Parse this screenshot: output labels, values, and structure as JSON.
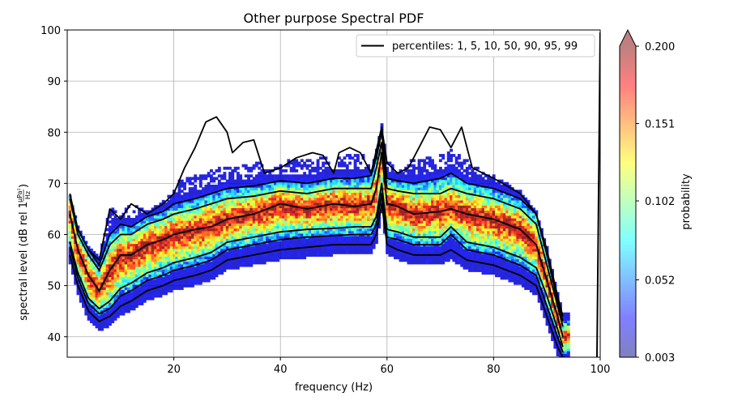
{
  "chart_data": {
    "type": "heatmap",
    "title": "Other purpose Spectral PDF",
    "xlabel": "frequency (Hz)",
    "ylabel": {
      "main": "spectral level (dB rel 1",
      "frac_num": "µPa²",
      "frac_den": "Hz",
      "close": ")"
    },
    "xlim": [
      0,
      100
    ],
    "ylim": [
      36,
      100
    ],
    "xticks": [
      20,
      40,
      60,
      80,
      100
    ],
    "yticks": [
      40,
      50,
      60,
      70,
      80,
      90,
      100
    ],
    "grid": true,
    "legend": {
      "label": "percentiles: 1, 5, 10, 50, 90, 95, 99",
      "placement": "top-right"
    },
    "colorbar": {
      "label": "probability",
      "ticks": [
        "0.200",
        "0.151",
        "0.102",
        "0.052",
        "0.003"
      ],
      "tick_values": [
        0.2,
        0.151,
        0.102,
        0.052,
        0.003
      ],
      "range": [
        0.003,
        0.2
      ],
      "extend": "max",
      "colormap": "jet"
    },
    "percentile_series": [
      {
        "name": "p1",
        "x": [
          0.5,
          2,
          4,
          6,
          8,
          10,
          12,
          15,
          18,
          20,
          24,
          27,
          30,
          35,
          40,
          45,
          50,
          54,
          57,
          58,
          59,
          60,
          62,
          65,
          70,
          72,
          75,
          80,
          85,
          88,
          90,
          92,
          93
        ],
        "y": [
          56,
          50,
          45,
          43,
          44,
          46,
          47,
          49,
          50,
          51,
          52,
          53,
          55,
          56,
          57,
          57.5,
          58,
          58,
          58,
          60,
          66,
          58,
          57,
          56,
          56,
          57,
          55,
          54,
          52,
          50,
          44,
          38,
          36
        ]
      },
      {
        "name": "p5",
        "x": [
          0.5,
          2,
          4,
          6,
          8,
          10,
          12,
          15,
          18,
          20,
          24,
          27,
          30,
          35,
          40,
          45,
          50,
          54,
          57,
          58,
          59,
          60,
          62,
          65,
          70,
          72,
          75,
          80,
          85,
          88,
          90,
          92,
          93
        ],
        "y": [
          57.5,
          51.5,
          46.5,
          44.5,
          45.5,
          48,
          49,
          51,
          52,
          53,
          54,
          55,
          57,
          58,
          59,
          59.5,
          59.8,
          60,
          60,
          62,
          68,
          59.5,
          59,
          58,
          58,
          60,
          57,
          56,
          54,
          52,
          46,
          40,
          37
        ]
      },
      {
        "name": "p10",
        "x": [
          0.5,
          2,
          4,
          6,
          8,
          10,
          12,
          15,
          18,
          20,
          24,
          27,
          30,
          35,
          40,
          45,
          50,
          54,
          57,
          58,
          59,
          60,
          62,
          65,
          70,
          72,
          75,
          80,
          85,
          88,
          90,
          92,
          93
        ],
        "y": [
          58.5,
          52.5,
          47.5,
          45.5,
          47,
          49.5,
          50.5,
          52.5,
          53.5,
          54.5,
          55.5,
          56.5,
          58.5,
          59.5,
          60.5,
          61,
          61.2,
          61.5,
          61.5,
          63.5,
          70,
          61,
          60.5,
          59.5,
          59.5,
          61.5,
          58.5,
          57.5,
          55.5,
          53.5,
          48,
          41.5,
          38
        ]
      },
      {
        "name": "p50",
        "x": [
          0.5,
          2,
          4,
          6,
          8,
          10,
          12,
          15,
          18,
          20,
          24,
          27,
          30,
          35,
          40,
          45,
          50,
          54,
          57,
          58,
          59,
          60,
          62,
          65,
          70,
          72,
          75,
          80,
          85,
          88,
          90,
          92,
          93
        ],
        "y": [
          64,
          57,
          52,
          49,
          53,
          56,
          56,
          58,
          59,
          60,
          61,
          61.5,
          63,
          64,
          66,
          65,
          66,
          65.5,
          66,
          69,
          76,
          66,
          65.5,
          64,
          64.5,
          65,
          64,
          63,
          61,
          58,
          51,
          44,
          40
        ]
      },
      {
        "name": "p90",
        "x": [
          0.5,
          2,
          4,
          6,
          8,
          10,
          12,
          15,
          18,
          20,
          24,
          27,
          30,
          35,
          40,
          45,
          50,
          54,
          57,
          58,
          59,
          60,
          62,
          65,
          70,
          72,
          75,
          80,
          85,
          88,
          90,
          92,
          93
        ],
        "y": [
          67,
          60,
          56,
          53,
          58,
          60,
          60,
          62,
          63,
          64,
          65,
          66,
          67,
          67.5,
          68.5,
          68,
          69,
          69,
          69,
          73,
          78,
          69,
          68.5,
          68,
          68,
          69,
          68,
          67,
          65,
          62,
          54,
          46,
          42
        ]
      },
      {
        "name": "p95",
        "x": [
          0.5,
          2,
          4,
          6,
          8,
          10,
          12,
          15,
          18,
          20,
          24,
          27,
          30,
          35,
          40,
          45,
          50,
          54,
          57,
          58,
          59,
          60,
          62,
          65,
          70,
          72,
          75,
          80,
          85,
          88,
          90,
          92,
          93
        ],
        "y": [
          68,
          61,
          57,
          54,
          60,
          62,
          61.5,
          63.5,
          64.5,
          66,
          67,
          68,
          69,
          69.5,
          70.5,
          70,
          71,
          71,
          71.5,
          75,
          80,
          71,
          70.5,
          70,
          71,
          72,
          70,
          69,
          67,
          64,
          56,
          47,
          43
        ]
      },
      {
        "name": "p99",
        "x": [
          0.5,
          2,
          4,
          6,
          8,
          10,
          12,
          15,
          18,
          20,
          22,
          24,
          26,
          28,
          30,
          31,
          33,
          35,
          37,
          40,
          43,
          46,
          48,
          50,
          51,
          53,
          55,
          57,
          59,
          60,
          62,
          64,
          66,
          68,
          70,
          72,
          74,
          76,
          80,
          85,
          88,
          90,
          92,
          93
        ],
        "y": [
          67,
          61,
          57,
          55,
          65,
          63,
          66,
          64,
          66,
          68,
          73,
          77,
          82,
          83,
          80,
          76,
          78,
          78.5,
          72,
          73,
          75,
          76,
          75.5,
          72,
          76,
          77,
          76,
          72,
          81,
          74,
          72,
          73,
          77,
          81,
          80.5,
          77,
          81,
          73,
          71,
          68,
          64,
          57,
          48,
          44
        ]
      }
    ]
  }
}
